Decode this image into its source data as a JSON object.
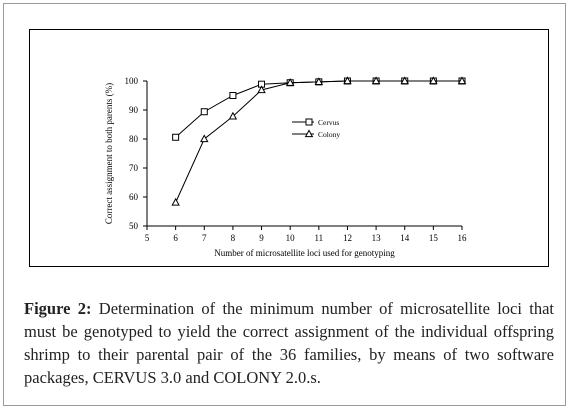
{
  "chart_data": {
    "type": "line",
    "xlabel": "Number of microsatellite loci used for genotyping",
    "ylabel": "Correct assignment to both parents (%)",
    "xlim": [
      5,
      16
    ],
    "ylim": [
      50,
      100
    ],
    "xticks": [
      5,
      6,
      7,
      8,
      9,
      10,
      11,
      12,
      13,
      14,
      15,
      16
    ],
    "yticks": [
      50,
      60,
      70,
      80,
      90,
      100
    ],
    "legend_position": "center-right",
    "grid": false,
    "series": [
      {
        "name": "Cervus",
        "marker": "open-square",
        "color": "#000000",
        "x": [
          6,
          7,
          8,
          9,
          10,
          11,
          12,
          13,
          14,
          15,
          16
        ],
        "y": [
          80.6,
          89.4,
          95.0,
          98.9,
          99.4,
          99.7,
          100,
          100,
          100,
          100,
          100
        ]
      },
      {
        "name": "Colony",
        "marker": "open-triangle",
        "color": "#000000",
        "x": [
          6,
          7,
          8,
          9,
          10,
          11,
          12,
          13,
          14,
          15,
          16
        ],
        "y": [
          58.1,
          80.0,
          87.8,
          96.9,
          99.4,
          99.7,
          100,
          100,
          100,
          100,
          100
        ]
      }
    ]
  },
  "caption": {
    "label": "Figure 2:",
    "text": "Determination of the minimum number of microsatellite loci that must be genotyped to yield the correct assignment of the individual offspring shrimp to their parental pair of the 36 families, by means of two software packages, CERVUS 3.0 and COLONY 2.0.s."
  }
}
